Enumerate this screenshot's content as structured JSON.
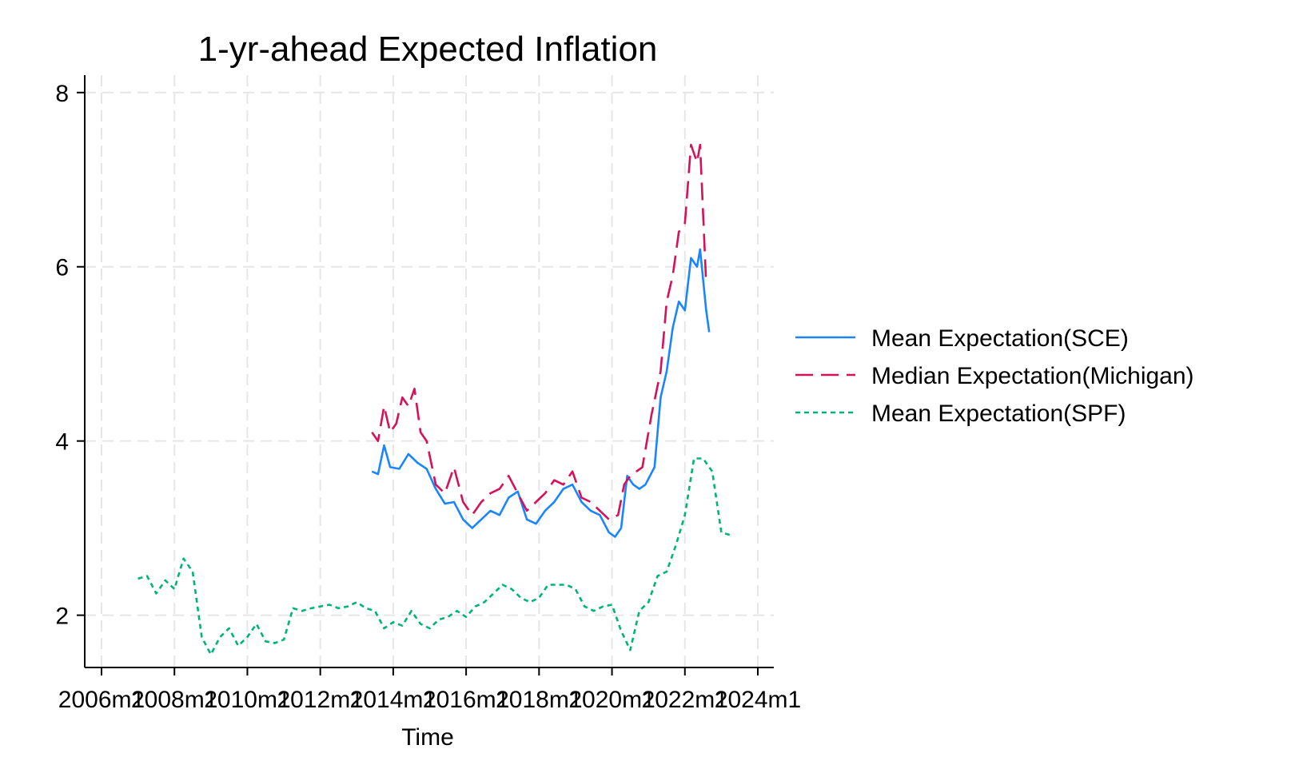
{
  "chart_data": {
    "type": "line",
    "title": "1-yr-ahead Expected Inflation",
    "xlabel": "Time",
    "ylabel": "",
    "xlim": [
      "2006m1",
      "2024m1"
    ],
    "ylim": [
      1.4,
      8.2
    ],
    "x_ticks": [
      "2006m1",
      "2008m1",
      "2010m1",
      "2012m1",
      "2014m1",
      "2016m1",
      "2018m1",
      "2020m1",
      "2022m1",
      "2024m1"
    ],
    "y_ticks": [
      2,
      4,
      6,
      8
    ],
    "y_tick_labels": [
      "2",
      "4",
      "6",
      "8"
    ],
    "grid": true,
    "legend_position": "right",
    "colors": {
      "sce": "#1a85ff",
      "michigan": "#d41159",
      "spf": "#00b37a",
      "grid": "#e6e6e6",
      "axis": "#000000"
    },
    "series": [
      {
        "name": "Mean Expectation(SCE)",
        "key": "sce",
        "dash": "solid",
        "points": [
          [
            "2013m6",
            3.65
          ],
          [
            "2013m8",
            3.62
          ],
          [
            "2013m10",
            3.95
          ],
          [
            "2013m12",
            3.7
          ],
          [
            "2014m3",
            3.68
          ],
          [
            "2014m6",
            3.85
          ],
          [
            "2014m9",
            3.75
          ],
          [
            "2014m12",
            3.68
          ],
          [
            "2015m3",
            3.45
          ],
          [
            "2015m6",
            3.28
          ],
          [
            "2015m9",
            3.3
          ],
          [
            "2015m12",
            3.1
          ],
          [
            "2016m3",
            3.0
          ],
          [
            "2016m6",
            3.1
          ],
          [
            "2016m9",
            3.2
          ],
          [
            "2016m12",
            3.15
          ],
          [
            "2017m3",
            3.35
          ],
          [
            "2017m6",
            3.42
          ],
          [
            "2017m9",
            3.1
          ],
          [
            "2017m12",
            3.05
          ],
          [
            "2018m3",
            3.2
          ],
          [
            "2018m6",
            3.3
          ],
          [
            "2018m9",
            3.45
          ],
          [
            "2018m12",
            3.5
          ],
          [
            "2019m3",
            3.3
          ],
          [
            "2019m6",
            3.2
          ],
          [
            "2019m9",
            3.15
          ],
          [
            "2019m12",
            2.95
          ],
          [
            "2020m2",
            2.9
          ],
          [
            "2020m4",
            3.0
          ],
          [
            "2020m6",
            3.6
          ],
          [
            "2020m8",
            3.5
          ],
          [
            "2020m10",
            3.45
          ],
          [
            "2020m12",
            3.5
          ],
          [
            "2021m3",
            3.7
          ],
          [
            "2021m5",
            4.5
          ],
          [
            "2021m7",
            4.8
          ],
          [
            "2021m9",
            5.3
          ],
          [
            "2021m11",
            5.6
          ],
          [
            "2022m1",
            5.5
          ],
          [
            "2022m3",
            6.1
          ],
          [
            "2022m5",
            6.0
          ],
          [
            "2022m6",
            6.2
          ],
          [
            "2022m8",
            5.5
          ],
          [
            "2022m9",
            5.25
          ]
        ]
      },
      {
        "name": "Median Expectation(Michigan)",
        "key": "michigan",
        "dash": "dashed",
        "points": [
          [
            "2013m6",
            4.1
          ],
          [
            "2013m8",
            4.0
          ],
          [
            "2013m10",
            4.4
          ],
          [
            "2013m12",
            4.1
          ],
          [
            "2014m2",
            4.2
          ],
          [
            "2014m4",
            4.5
          ],
          [
            "2014m6",
            4.4
          ],
          [
            "2014m8",
            4.6
          ],
          [
            "2014m10",
            4.1
          ],
          [
            "2014m12",
            4.0
          ],
          [
            "2015m3",
            3.5
          ],
          [
            "2015m6",
            3.4
          ],
          [
            "2015m9",
            3.7
          ],
          [
            "2015m12",
            3.3
          ],
          [
            "2016m3",
            3.15
          ],
          [
            "2016m6",
            3.3
          ],
          [
            "2016m9",
            3.4
          ],
          [
            "2016m12",
            3.45
          ],
          [
            "2017m3",
            3.6
          ],
          [
            "2017m6",
            3.4
          ],
          [
            "2017m9",
            3.2
          ],
          [
            "2017m12",
            3.3
          ],
          [
            "2018m3",
            3.4
          ],
          [
            "2018m6",
            3.55
          ],
          [
            "2018m9",
            3.5
          ],
          [
            "2018m12",
            3.65
          ],
          [
            "2019m3",
            3.35
          ],
          [
            "2019m6",
            3.3
          ],
          [
            "2019m9",
            3.2
          ],
          [
            "2019m12",
            3.1
          ],
          [
            "2020m3",
            3.15
          ],
          [
            "2020m5",
            3.5
          ],
          [
            "2020m7",
            3.6
          ],
          [
            "2020m9",
            3.65
          ],
          [
            "2020m11",
            3.7
          ],
          [
            "2021m2",
            4.3
          ],
          [
            "2021m5",
            4.8
          ],
          [
            "2021m7",
            5.6
          ],
          [
            "2021m9",
            5.9
          ],
          [
            "2021m11",
            6.4
          ],
          [
            "2022m1",
            6.5
          ],
          [
            "2022m3",
            7.4
          ],
          [
            "2022m5",
            7.2
          ],
          [
            "2022m6",
            7.4
          ],
          [
            "2022m8",
            5.8
          ]
        ]
      },
      {
        "name": "Mean Expectation(SPF)",
        "key": "spf",
        "dash": "dotted",
        "points": [
          [
            "2007m1",
            2.42
          ],
          [
            "2007m4",
            2.45
          ],
          [
            "2007m7",
            2.25
          ],
          [
            "2007m10",
            2.4
          ],
          [
            "2008m1",
            2.3
          ],
          [
            "2008m4",
            2.65
          ],
          [
            "2008m7",
            2.5
          ],
          [
            "2008m10",
            1.75
          ],
          [
            "2009m1",
            1.55
          ],
          [
            "2009m4",
            1.75
          ],
          [
            "2009m7",
            1.85
          ],
          [
            "2009m10",
            1.65
          ],
          [
            "2010m1",
            1.75
          ],
          [
            "2010m4",
            1.9
          ],
          [
            "2010m7",
            1.7
          ],
          [
            "2010m10",
            1.68
          ],
          [
            "2011m1",
            1.72
          ],
          [
            "2011m4",
            2.08
          ],
          [
            "2011m7",
            2.05
          ],
          [
            "2011m10",
            2.08
          ],
          [
            "2012m1",
            2.1
          ],
          [
            "2012m4",
            2.12
          ],
          [
            "2012m7",
            2.08
          ],
          [
            "2012m10",
            2.1
          ],
          [
            "2013m1",
            2.15
          ],
          [
            "2013m4",
            2.08
          ],
          [
            "2013m7",
            2.05
          ],
          [
            "2013m10",
            1.85
          ],
          [
            "2014m1",
            1.92
          ],
          [
            "2014m4",
            1.88
          ],
          [
            "2014m7",
            2.05
          ],
          [
            "2014m10",
            1.9
          ],
          [
            "2015m1",
            1.85
          ],
          [
            "2015m4",
            1.95
          ],
          [
            "2015m7",
            1.98
          ],
          [
            "2015m10",
            2.05
          ],
          [
            "2016m1",
            1.98
          ],
          [
            "2016m4",
            2.1
          ],
          [
            "2016m7",
            2.15
          ],
          [
            "2016m10",
            2.25
          ],
          [
            "2017m1",
            2.35
          ],
          [
            "2017m4",
            2.3
          ],
          [
            "2017m7",
            2.2
          ],
          [
            "2017m10",
            2.15
          ],
          [
            "2018m1",
            2.2
          ],
          [
            "2018m4",
            2.35
          ],
          [
            "2018m7",
            2.35
          ],
          [
            "2018m10",
            2.35
          ],
          [
            "2019m1",
            2.3
          ],
          [
            "2019m4",
            2.1
          ],
          [
            "2019m7",
            2.05
          ],
          [
            "2019m10",
            2.1
          ],
          [
            "2020m1",
            2.12
          ],
          [
            "2020m4",
            1.82
          ],
          [
            "2020m7",
            1.6
          ],
          [
            "2020m10",
            2.05
          ],
          [
            "2021m1",
            2.15
          ],
          [
            "2021m4",
            2.45
          ],
          [
            "2021m7",
            2.5
          ],
          [
            "2021m10",
            2.8
          ],
          [
            "2022m1",
            3.15
          ],
          [
            "2022m4",
            3.8
          ],
          [
            "2022m7",
            3.8
          ],
          [
            "2022m10",
            3.65
          ],
          [
            "2023m1",
            2.95
          ],
          [
            "2023m4",
            2.92
          ]
        ]
      }
    ]
  }
}
